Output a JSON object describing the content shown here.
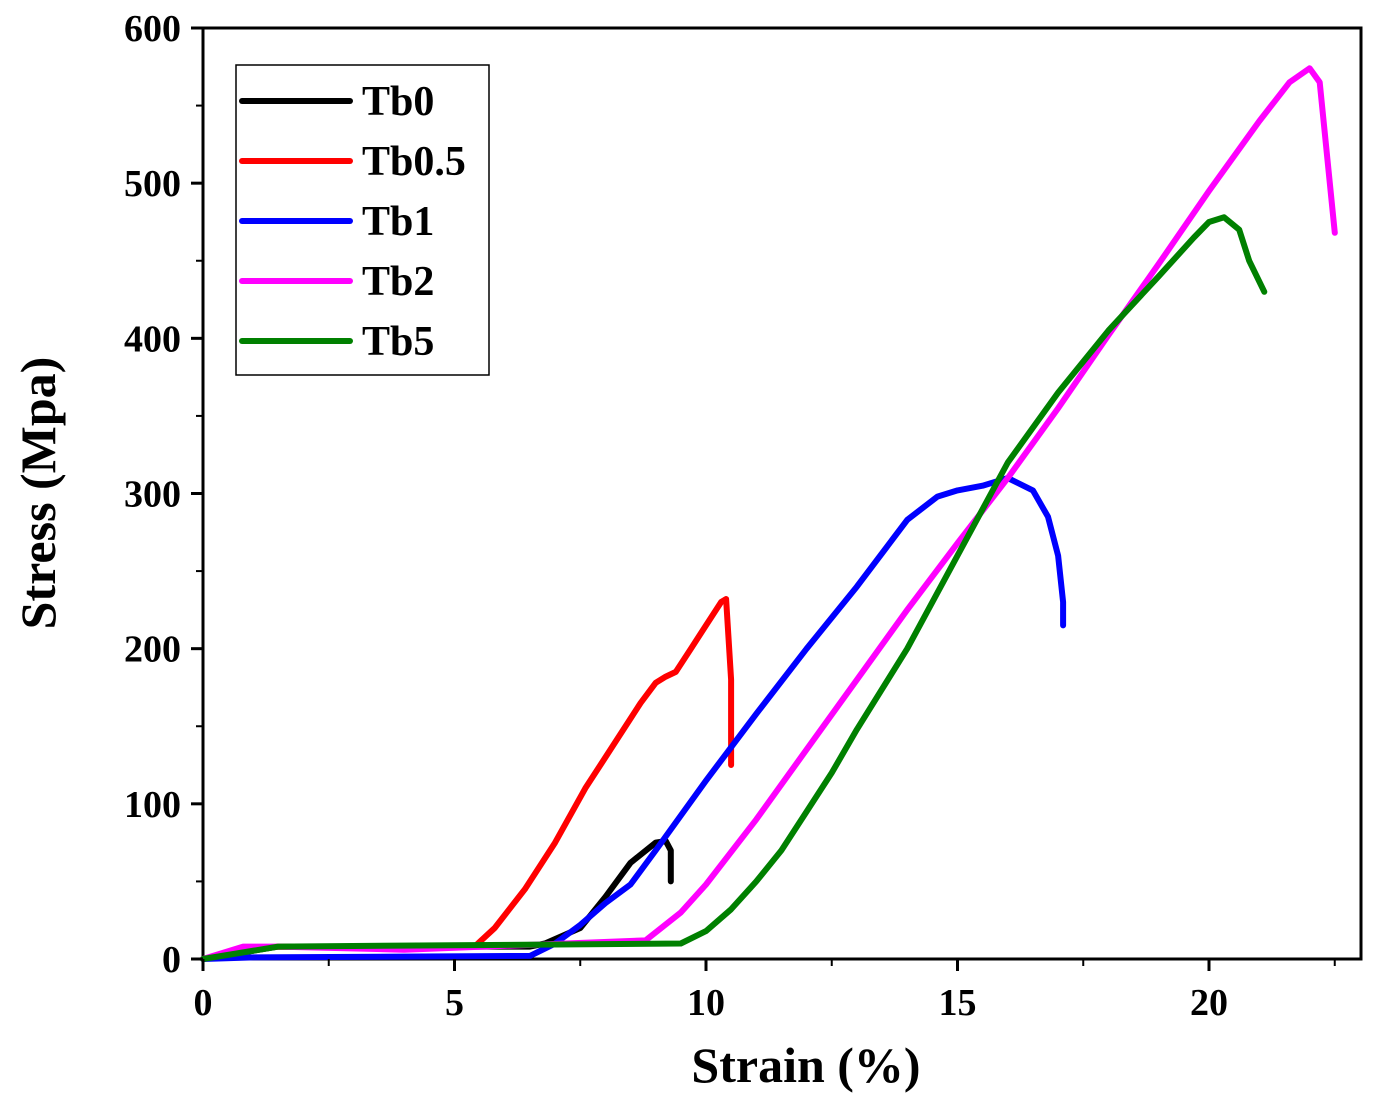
{
  "chart_data": {
    "type": "line",
    "title": "",
    "xlabel": "Strain (%)",
    "ylabel": "Stress (Mpa)",
    "xlim": [
      0,
      23
    ],
    "ylim": [
      0,
      600
    ],
    "xticks": [
      0,
      5,
      10,
      15,
      20
    ],
    "yticks": [
      0,
      100,
      200,
      300,
      400,
      500,
      600
    ],
    "xtick_labels": [
      "0",
      "5",
      "10",
      "15",
      "20"
    ],
    "ytick_labels": [
      "0",
      "100",
      "200",
      "300",
      "400",
      "500",
      "600"
    ],
    "grid": false,
    "legend_position": "top-left",
    "series": [
      {
        "name": "Tb0",
        "color": "#000000",
        "x": [
          0,
          1.5,
          6.5,
          6.8,
          7.5,
          8.0,
          8.5,
          9.0,
          9.2,
          9.3,
          9.3
        ],
        "y": [
          0,
          8,
          8,
          10,
          20,
          40,
          62,
          75,
          76,
          70,
          50
        ]
      },
      {
        "name": "Tb0.5",
        "color": "#ff0000",
        "x": [
          0,
          0.8,
          1.5,
          4.0,
          5.4,
          5.8,
          6.4,
          7.0,
          7.6,
          8.2,
          8.7,
          9.0,
          9.2,
          9.4,
          9.7,
          10.0,
          10.3,
          10.4,
          10.5,
          10.5
        ],
        "y": [
          0,
          6,
          8,
          7,
          8,
          20,
          45,
          75,
          110,
          140,
          165,
          178,
          182,
          185,
          200,
          215,
          230,
          232,
          180,
          125
        ]
      },
      {
        "name": "Tb1",
        "color": "#0000ff",
        "x": [
          0,
          1.0,
          6.5,
          7.0,
          7.5,
          8.0,
          8.5,
          9.0,
          10.0,
          11.0,
          12.0,
          13.0,
          14.0,
          14.6,
          15.0,
          15.5,
          16.0,
          16.5,
          16.8,
          17.0,
          17.1,
          17.1
        ],
        "y": [
          0,
          1,
          2,
          10,
          22,
          36,
          48,
          70,
          115,
          158,
          200,
          240,
          283,
          298,
          302,
          305,
          310,
          302,
          285,
          260,
          230,
          215
        ]
      },
      {
        "name": "Tb2",
        "color": "#ff00ff",
        "x": [
          0,
          0.8,
          1.5,
          4.0,
          8.8,
          9.5,
          10.0,
          11.0,
          12.0,
          13.0,
          14.0,
          15.0,
          16.0,
          17.0,
          18.0,
          19.0,
          20.0,
          21.0,
          21.6,
          22.0,
          22.2,
          22.5
        ],
        "y": [
          0,
          8,
          8,
          6,
          12,
          30,
          48,
          90,
          135,
          180,
          225,
          268,
          310,
          355,
          402,
          448,
          495,
          540,
          565,
          574,
          565,
          468
        ]
      },
      {
        "name": "Tb5",
        "color": "#008000",
        "x": [
          0,
          1.5,
          9.5,
          10.0,
          10.5,
          11.0,
          11.5,
          12.0,
          12.5,
          13.0,
          14.0,
          15.0,
          16.0,
          17.0,
          18.0,
          19.0,
          19.7,
          20.0,
          20.3,
          20.6,
          20.8,
          21.1
        ],
        "y": [
          0,
          8,
          10,
          18,
          32,
          50,
          70,
          95,
          120,
          148,
          200,
          260,
          320,
          365,
          405,
          440,
          465,
          475,
          478,
          470,
          450,
          430
        ]
      }
    ]
  }
}
